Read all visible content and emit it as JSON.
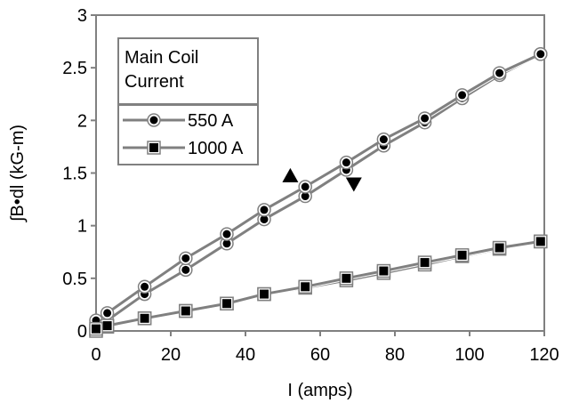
{
  "chart_data": {
    "type": "line",
    "title": "",
    "xlabel": "I (amps)",
    "ylabel": "∫B•dl (kG-m)",
    "xlim": [
      0,
      120
    ],
    "ylim": [
      0,
      3
    ],
    "xticks": [
      "0",
      "20",
      "40",
      "60",
      "80",
      "100",
      "120"
    ],
    "yticks": [
      "0",
      "0.5",
      "1",
      "1.5",
      "2",
      "2.5",
      "3"
    ],
    "grid": false,
    "legend_title": "Main Coil\nCurrent",
    "legend_title_lines": [
      "Main Coil",
      "Current"
    ],
    "legend_placement": "top-left",
    "series": [
      {
        "name": "550 A",
        "marker": "circle",
        "color": "#808080",
        "branches": [
          {
            "direction": "up",
            "x": [
              0,
              3,
              13,
              24,
              35,
              45,
              56,
              67,
              77,
              88,
              98,
              108,
              119
            ],
            "y": [
              0.02,
              0.1,
              0.35,
              0.58,
              0.83,
              1.06,
              1.28,
              1.53,
              1.76,
              1.98,
              2.21,
              2.43,
              2.63
            ]
          },
          {
            "direction": "down",
            "x": [
              119,
              108,
              98,
              88,
              77,
              67,
              56,
              45,
              35,
              24,
              13,
              3,
              0
            ],
            "y": [
              2.63,
              2.45,
              2.24,
              2.02,
              1.82,
              1.6,
              1.37,
              1.15,
              0.92,
              0.69,
              0.42,
              0.17,
              0.1
            ]
          }
        ]
      },
      {
        "name": "1000 A",
        "marker": "square",
        "color": "#808080",
        "branches": [
          {
            "direction": "up",
            "x": [
              0,
              3,
              13,
              24,
              35,
              45,
              56,
              67,
              77,
              88,
              98,
              108,
              119
            ],
            "y": [
              0.0,
              0.04,
              0.12,
              0.19,
              0.26,
              0.35,
              0.41,
              0.48,
              0.55,
              0.63,
              0.71,
              0.78,
              0.85
            ]
          },
          {
            "direction": "down",
            "x": [
              119,
              108,
              98,
              88,
              77,
              67,
              56,
              45,
              35,
              24,
              13,
              3,
              0
            ],
            "y": [
              0.85,
              0.79,
              0.72,
              0.65,
              0.57,
              0.5,
              0.42,
              0.35,
              0.26,
              0.19,
              0.12,
              0.05,
              0.02
            ]
          }
        ]
      }
    ],
    "annotations": [
      {
        "shape": "triangle-up",
        "x": 52,
        "y": 1.48
      },
      {
        "shape": "triangle-down",
        "x": 69,
        "y": 1.39
      }
    ]
  }
}
